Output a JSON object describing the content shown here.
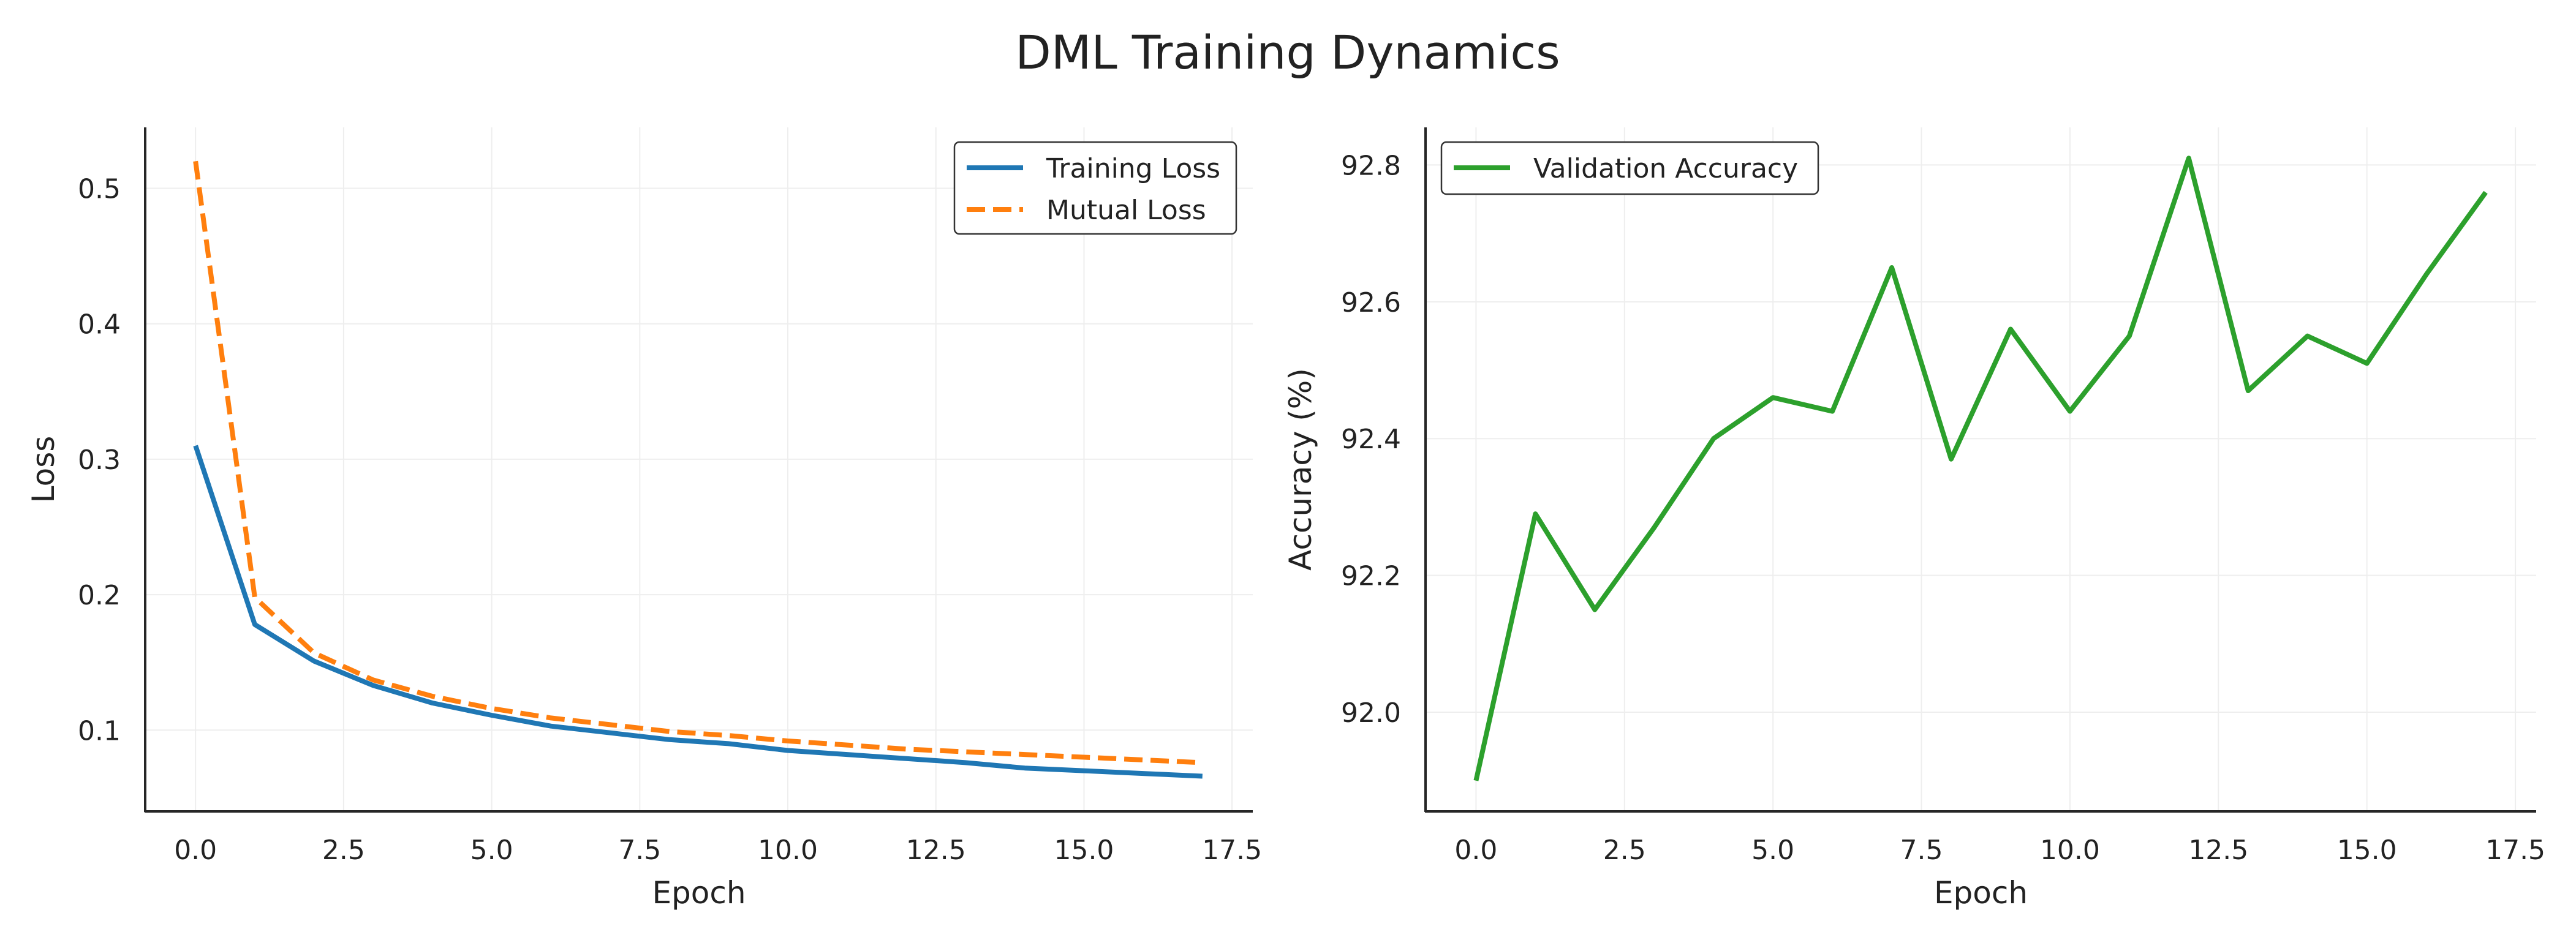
{
  "figure": {
    "title": "DML Training Dynamics"
  },
  "chart_data": [
    {
      "type": "line",
      "title": "",
      "xlabel": "Epoch",
      "ylabel": "Loss",
      "xlim": [
        -0.85,
        17.85
      ],
      "ylim": [
        0.04,
        0.545
      ],
      "xticks": [
        0,
        2.5,
        5,
        7.5,
        10,
        12.5,
        15,
        17.5
      ],
      "xtick_labels": [
        "0.0",
        "2.5",
        "5.0",
        "7.5",
        "10.0",
        "12.5",
        "15.0",
        "17.5"
      ],
      "yticks": [
        0.1,
        0.2,
        0.3,
        0.4,
        0.5
      ],
      "ytick_labels": [
        "0.1",
        "0.2",
        "0.3",
        "0.4",
        "0.5"
      ],
      "grid": true,
      "legend": "top-right",
      "x": [
        0,
        1,
        2,
        3,
        4,
        5,
        6,
        7,
        8,
        9,
        10,
        11,
        12,
        13,
        14,
        15,
        16,
        17
      ],
      "series": [
        {
          "name": "Training Loss",
          "color": "#1f77b4",
          "style": "solid",
          "values": [
            0.31,
            0.178,
            0.151,
            0.133,
            0.12,
            0.111,
            0.103,
            0.098,
            0.093,
            0.09,
            0.085,
            0.082,
            0.079,
            0.076,
            0.072,
            0.07,
            0.068,
            0.066
          ]
        },
        {
          "name": "Mutual Loss",
          "color": "#ff7f0e",
          "style": "dashed",
          "values": [
            0.52,
            0.198,
            0.157,
            0.137,
            0.125,
            0.116,
            0.109,
            0.104,
            0.099,
            0.096,
            0.092,
            0.089,
            0.086,
            0.084,
            0.082,
            0.08,
            0.078,
            0.076
          ]
        }
      ]
    },
    {
      "type": "line",
      "title": "",
      "xlabel": "Epoch",
      "ylabel": "Accuracy (%)",
      "xlim": [
        -0.85,
        17.85
      ],
      "ylim": [
        91.855,
        92.855
      ],
      "xticks": [
        0,
        2.5,
        5,
        7.5,
        10,
        12.5,
        15,
        17.5
      ],
      "xtick_labels": [
        "0.0",
        "2.5",
        "5.0",
        "7.5",
        "10.0",
        "12.5",
        "15.0",
        "17.5"
      ],
      "yticks": [
        92.0,
        92.2,
        92.4,
        92.6,
        92.8
      ],
      "ytick_labels": [
        "92.0",
        "92.2",
        "92.4",
        "92.6",
        "92.8"
      ],
      "grid": true,
      "legend": "top-left",
      "x": [
        0,
        1,
        2,
        3,
        4,
        5,
        6,
        7,
        8,
        9,
        10,
        11,
        12,
        13,
        14,
        15,
        16,
        17
      ],
      "series": [
        {
          "name": "Validation Accuracy",
          "color": "#2ca02c",
          "style": "solid",
          "values": [
            91.9,
            92.29,
            92.15,
            92.27,
            92.4,
            92.46,
            92.44,
            92.65,
            92.37,
            92.56,
            92.44,
            92.55,
            92.81,
            92.47,
            92.55,
            92.51,
            92.64,
            92.76
          ]
        }
      ]
    }
  ]
}
